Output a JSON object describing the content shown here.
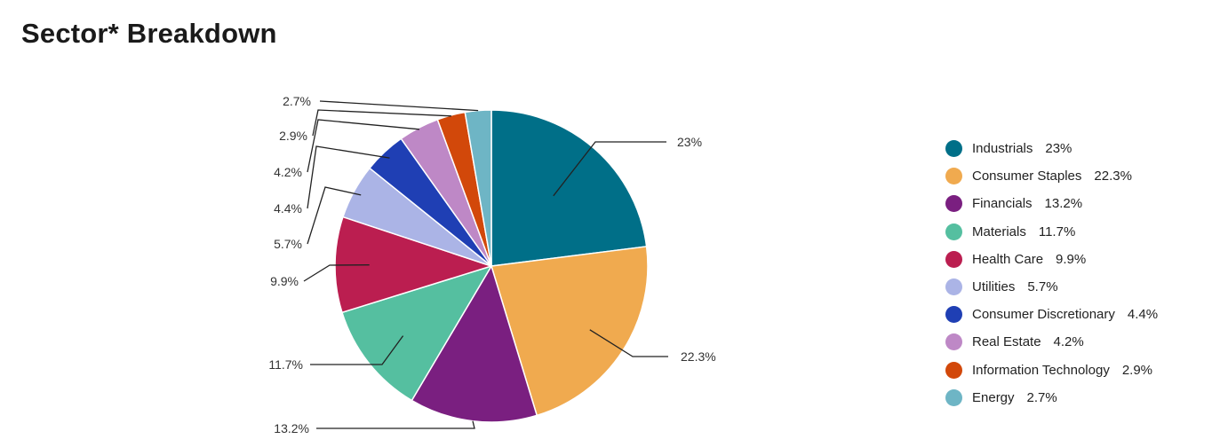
{
  "title": "Sector* Breakdown",
  "chart_data": {
    "type": "pie",
    "slices": [
      {
        "name": "Industrials",
        "value": 23,
        "label": "23%",
        "legend_value": "23%",
        "color": "#006F88"
      },
      {
        "name": "Consumer Staples",
        "value": 22.3,
        "label": "22.3%",
        "legend_value": "22.3%",
        "color": "#F0AA4F"
      },
      {
        "name": "Financials",
        "value": 13.2,
        "label": "13.2%",
        "legend_value": "13.2%",
        "color": "#7A1F80"
      },
      {
        "name": "Materials",
        "value": 11.7,
        "label": "11.7%",
        "legend_value": "11.7%",
        "color": "#55BFA0"
      },
      {
        "name": "Health Care",
        "value": 9.9,
        "label": "9.9%",
        "legend_value": "9.9%",
        "color": "#BB1E50"
      },
      {
        "name": "Utilities",
        "value": 5.7,
        "label": "5.7%",
        "legend_value": "5.7%",
        "color": "#ABB4E6"
      },
      {
        "name": "Consumer Discretionary",
        "value": 4.4,
        "label": "4.4%",
        "legend_value": "4.4%",
        "color": "#1F3FB4"
      },
      {
        "name": "Real Estate",
        "value": 4.2,
        "label": "4.2%",
        "legend_value": "4.2%",
        "color": "#BE88C6"
      },
      {
        "name": "Information Technology",
        "value": 2.9,
        "label": "2.9%",
        "legend_value": "2.9%",
        "color": "#D2480A"
      },
      {
        "name": "Energy",
        "value": 2.7,
        "label": "2.7%",
        "legend_value": "2.7%",
        "color": "#6EB5C5"
      }
    ],
    "legend_position": "right"
  }
}
